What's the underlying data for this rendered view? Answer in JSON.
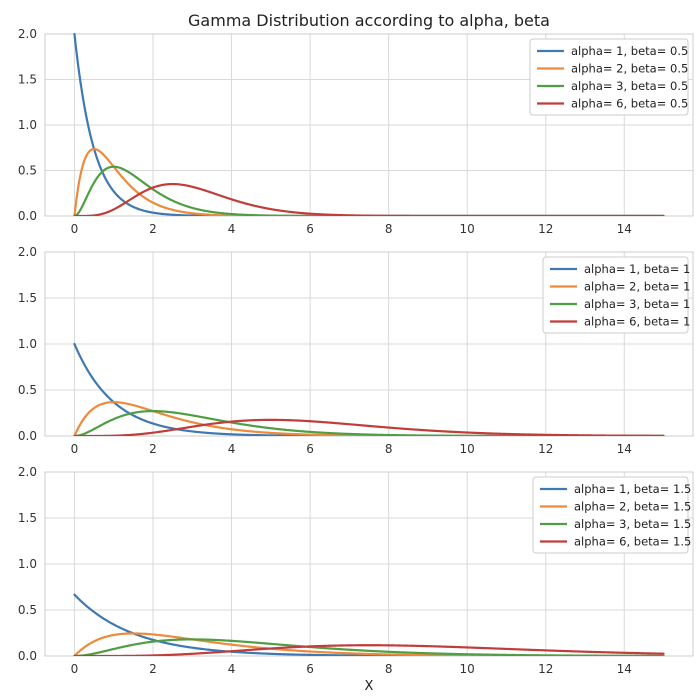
{
  "figure": {
    "title": "Gamma Distribution according to alpha, beta",
    "xlabel": "X"
  },
  "colors": {
    "alpha1": "#3f79b3",
    "alpha2": "#ee8a3c",
    "alpha3": "#4f9e43",
    "alpha6": "#c03d3a",
    "grid": "#d9d9d9",
    "frame": "#cccccc"
  },
  "chart_data": [
    {
      "type": "line",
      "title": "Gamma Distribution according to alpha, beta",
      "xlabel": "",
      "ylabel": "",
      "xlim": [
        -0.75,
        15.75
      ],
      "ylim": [
        0,
        2.0
      ],
      "xticks": [
        0,
        2,
        4,
        6,
        8,
        10,
        12,
        14
      ],
      "yticks": [
        0.0,
        0.5,
        1.0,
        1.5,
        2.0
      ],
      "xtick_labels": [
        "0",
        "2",
        "4",
        "6",
        "8",
        "10",
        "12",
        "14"
      ],
      "ytick_labels": [
        "0.0",
        "0.5",
        "1.0",
        "1.5",
        "2.0"
      ],
      "grid": true,
      "legend_position": "top-right",
      "x_domain": [
        0,
        15
      ],
      "beta": 0.5,
      "series": [
        {
          "name": "alpha= 1, beta= 0.5",
          "alpha": 1,
          "beta": 0.5,
          "color_key": "alpha1"
        },
        {
          "name": "alpha= 2, beta= 0.5",
          "alpha": 2,
          "beta": 0.5,
          "color_key": "alpha2"
        },
        {
          "name": "alpha= 3, beta= 0.5",
          "alpha": 3,
          "beta": 0.5,
          "color_key": "alpha3"
        },
        {
          "name": "alpha= 6, beta= 0.5",
          "alpha": 6,
          "beta": 0.5,
          "color_key": "alpha6"
        }
      ]
    },
    {
      "type": "line",
      "title": "",
      "xlabel": "",
      "ylabel": "",
      "xlim": [
        -0.75,
        15.75
      ],
      "ylim": [
        0,
        2.0
      ],
      "xticks": [
        0,
        2,
        4,
        6,
        8,
        10,
        12,
        14
      ],
      "yticks": [
        0.0,
        0.5,
        1.0,
        1.5,
        2.0
      ],
      "xtick_labels": [
        "0",
        "2",
        "4",
        "6",
        "8",
        "10",
        "12",
        "14"
      ],
      "ytick_labels": [
        "0.0",
        "0.5",
        "1.0",
        "1.5",
        "2.0"
      ],
      "grid": true,
      "legend_position": "top-right",
      "x_domain": [
        0,
        15
      ],
      "beta": 1,
      "series": [
        {
          "name": "alpha= 1, beta= 1",
          "alpha": 1,
          "beta": 1,
          "color_key": "alpha1"
        },
        {
          "name": "alpha= 2, beta= 1",
          "alpha": 2,
          "beta": 1,
          "color_key": "alpha2"
        },
        {
          "name": "alpha= 3, beta= 1",
          "alpha": 3,
          "beta": 1,
          "color_key": "alpha3"
        },
        {
          "name": "alpha= 6, beta= 1",
          "alpha": 6,
          "beta": 1,
          "color_key": "alpha6"
        }
      ]
    },
    {
      "type": "line",
      "title": "",
      "xlabel": "X",
      "ylabel": "",
      "xlim": [
        -0.75,
        15.75
      ],
      "ylim": [
        0,
        2.0
      ],
      "xticks": [
        0,
        2,
        4,
        6,
        8,
        10,
        12,
        14
      ],
      "yticks": [
        0.0,
        0.5,
        1.0,
        1.5,
        2.0
      ],
      "xtick_labels": [
        "0",
        "2",
        "4",
        "6",
        "8",
        "10",
        "12",
        "14"
      ],
      "ytick_labels": [
        "0.0",
        "0.5",
        "1.0",
        "1.5",
        "2.0"
      ],
      "grid": true,
      "legend_position": "top-right",
      "x_domain": [
        0,
        15
      ],
      "beta": 1.5,
      "series": [
        {
          "name": "alpha= 1, beta= 1.5",
          "alpha": 1,
          "beta": 1.5,
          "color_key": "alpha1"
        },
        {
          "name": "alpha= 2, beta= 1.5",
          "alpha": 2,
          "beta": 1.5,
          "color_key": "alpha2"
        },
        {
          "name": "alpha= 3, beta= 1.5",
          "alpha": 3,
          "beta": 1.5,
          "color_key": "alpha3"
        },
        {
          "name": "alpha= 6, beta= 1.5",
          "alpha": 6,
          "beta": 1.5,
          "color_key": "alpha6"
        }
      ]
    }
  ]
}
